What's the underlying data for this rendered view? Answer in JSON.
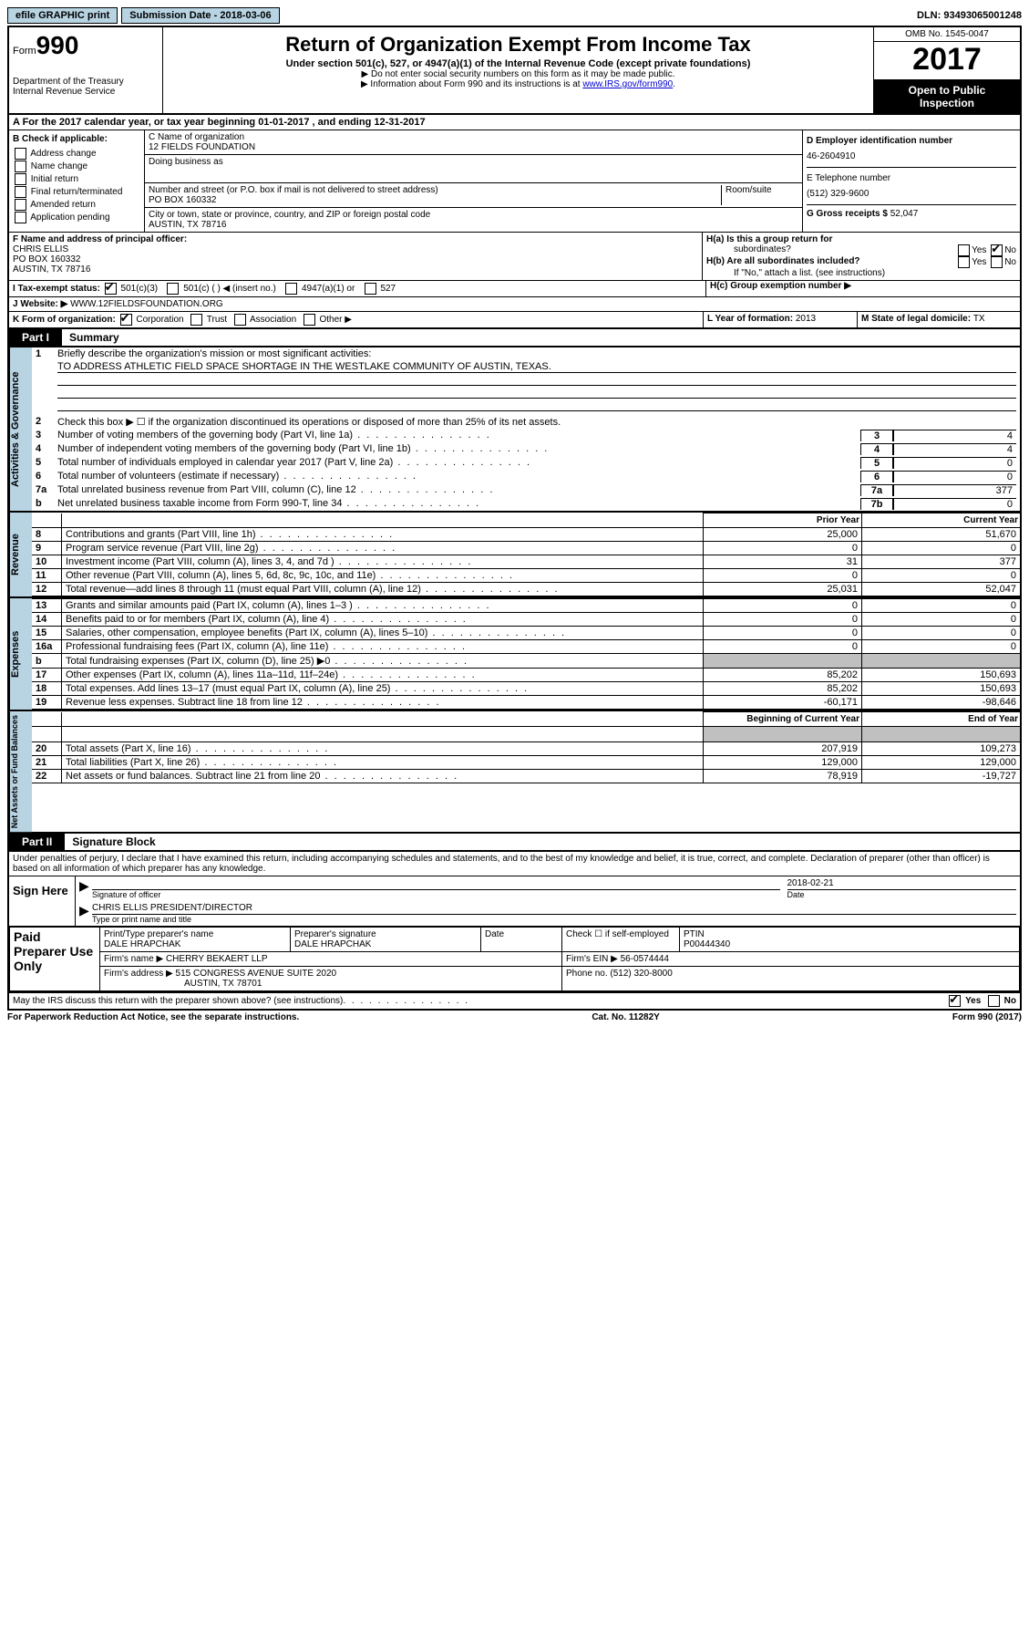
{
  "topbar": {
    "efile": "efile GRAPHIC print",
    "submission_label": "Submission Date - ",
    "submission_date": "2018-03-06",
    "dln": "DLN: 93493065001248"
  },
  "header": {
    "form_prefix": "Form",
    "form_number": "990",
    "dept1": "Department of the Treasury",
    "dept2": "Internal Revenue Service",
    "title": "Return of Organization Exempt From Income Tax",
    "sub": "Under section 501(c), 527, or 4947(a)(1) of the Internal Revenue Code (except private foundations)",
    "note1": "▶ Do not enter social security numbers on this form as it may be made public.",
    "note2": "▶ Information about Form 990 and its instructions is at ",
    "link": "www.IRS.gov/form990",
    "omb": "OMB No. 1545-0047",
    "year": "2017",
    "open1": "Open to Public",
    "open2": "Inspection"
  },
  "sectionA": "A  For the 2017 calendar year, or tax year beginning 01-01-2017   , and ending 12-31-2017",
  "B": {
    "title": "B Check if applicable:",
    "opts": [
      "Address change",
      "Name change",
      "Initial return",
      "Final return/terminated",
      "Amended return",
      "Application pending"
    ]
  },
  "C": {
    "name_label": "C Name of organization",
    "name": "12 FIELDS FOUNDATION",
    "dba_label": "Doing business as",
    "dba": "",
    "street_label": "Number and street (or P.O. box if mail is not delivered to street address)",
    "room_label": "Room/suite",
    "street": "PO BOX 160332",
    "city_label": "City or town, state or province, country, and ZIP or foreign postal code",
    "city": "AUSTIN, TX  78716"
  },
  "D": {
    "label": "D Employer identification number",
    "ein": "46-2604910",
    "tel_label": "E Telephone number",
    "tel": "(512) 329-9600",
    "gross_label": "G Gross receipts $ ",
    "gross": "52,047"
  },
  "F": {
    "label": "F  Name and address of principal officer:",
    "name": "CHRIS ELLIS",
    "addr1": "PO BOX 160332",
    "addr2": "AUSTIN, TX  78716"
  },
  "H": {
    "a": "H(a)  Is this a group return for",
    "a2": "subordinates?",
    "b": "H(b)  Are all subordinates included?",
    "b2": "If \"No,\" attach a list. (see instructions)",
    "c": "H(c)  Group exemption number ▶"
  },
  "I": {
    "label": "I  Tax-exempt status:",
    "o1": "501(c)(3)",
    "o2": "501(c) (  ) ◀ (insert no.)",
    "o3": "4947(a)(1) or",
    "o4": "527"
  },
  "J": {
    "label": "J  Website: ▶",
    "url": "WWW.12FIELDSFOUNDATION.ORG"
  },
  "K": {
    "label": "K Form of organization:",
    "o1": "Corporation",
    "o2": "Trust",
    "o3": "Association",
    "o4": "Other ▶"
  },
  "L": {
    "label": "L Year of formation: ",
    "val": "2013"
  },
  "M": {
    "label": "M State of legal domicile: ",
    "val": "TX"
  },
  "part1": {
    "label": "Part I",
    "title": "Summary",
    "side1": "Activities & Governance",
    "side2": "Revenue",
    "side3": "Expenses",
    "side4": "Net Assets or Fund Balances",
    "l1": "Briefly describe the organization's mission or most significant activities:",
    "mission": "TO ADDRESS ATHLETIC FIELD SPACE SHORTAGE IN THE WESTLAKE COMMUNITY OF AUSTIN, TEXAS.",
    "l2": "Check this box ▶ ☐  if the organization discontinued its operations or disposed of more than 25% of its net assets.",
    "gov": [
      {
        "n": "3",
        "t": "Number of voting members of the governing body (Part VI, line 1a)",
        "b": "3",
        "v": "4"
      },
      {
        "n": "4",
        "t": "Number of independent voting members of the governing body (Part VI, line 1b)",
        "b": "4",
        "v": "4"
      },
      {
        "n": "5",
        "t": "Total number of individuals employed in calendar year 2017 (Part V, line 2a)",
        "b": "5",
        "v": "0"
      },
      {
        "n": "6",
        "t": "Total number of volunteers (estimate if necessary)",
        "b": "6",
        "v": "0"
      },
      {
        "n": "7a",
        "t": "Total unrelated business revenue from Part VIII, column (C), line 12",
        "b": "7a",
        "v": "377"
      },
      {
        "n": "b",
        "t": "Net unrelated business taxable income from Form 990-T, line 34",
        "b": "7b",
        "v": "0"
      }
    ],
    "hdr_prior": "Prior Year",
    "hdr_curr": "Current Year",
    "revenue": [
      {
        "n": "8",
        "t": "Contributions and grants (Part VIII, line 1h)",
        "p": "25,000",
        "c": "51,670"
      },
      {
        "n": "9",
        "t": "Program service revenue (Part VIII, line 2g)",
        "p": "0",
        "c": "0"
      },
      {
        "n": "10",
        "t": "Investment income (Part VIII, column (A), lines 3, 4, and 7d )",
        "p": "31",
        "c": "377"
      },
      {
        "n": "11",
        "t": "Other revenue (Part VIII, column (A), lines 5, 6d, 8c, 9c, 10c, and 11e)",
        "p": "0",
        "c": "0"
      },
      {
        "n": "12",
        "t": "Total revenue—add lines 8 through 11 (must equal Part VIII, column (A), line 12)",
        "p": "25,031",
        "c": "52,047"
      }
    ],
    "expenses": [
      {
        "n": "13",
        "t": "Grants and similar amounts paid (Part IX, column (A), lines 1–3 )",
        "p": "0",
        "c": "0"
      },
      {
        "n": "14",
        "t": "Benefits paid to or for members (Part IX, column (A), line 4)",
        "p": "0",
        "c": "0"
      },
      {
        "n": "15",
        "t": "Salaries, other compensation, employee benefits (Part IX, column (A), lines 5–10)",
        "p": "0",
        "c": "0"
      },
      {
        "n": "16a",
        "t": "Professional fundraising fees (Part IX, column (A), line 11e)",
        "p": "0",
        "c": "0"
      },
      {
        "n": "b",
        "t": "Total fundraising expenses (Part IX, column (D), line 25) ▶0",
        "p": "",
        "c": "",
        "grey": true
      },
      {
        "n": "17",
        "t": "Other expenses (Part IX, column (A), lines 11a–11d, 11f–24e)",
        "p": "85,202",
        "c": "150,693"
      },
      {
        "n": "18",
        "t": "Total expenses. Add lines 13–17 (must equal Part IX, column (A), line 25)",
        "p": "85,202",
        "c": "150,693"
      },
      {
        "n": "19",
        "t": "Revenue less expenses. Subtract line 18 from line 12",
        "p": "-60,171",
        "c": "-98,646"
      }
    ],
    "hdr_beg": "Beginning of Current Year",
    "hdr_end": "End of Year",
    "net": [
      {
        "n": "20",
        "t": "Total assets (Part X, line 16)",
        "p": "207,919",
        "c": "109,273"
      },
      {
        "n": "21",
        "t": "Total liabilities (Part X, line 26)",
        "p": "129,000",
        "c": "129,000"
      },
      {
        "n": "22",
        "t": "Net assets or fund balances. Subtract line 21 from line 20",
        "p": "78,919",
        "c": "-19,727"
      }
    ]
  },
  "part2": {
    "label": "Part II",
    "title": "Signature Block",
    "intro": "Under penalties of perjury, I declare that I have examined this return, including accompanying schedules and statements, and to the best of my knowledge and belief, it is true, correct, and complete. Declaration of preparer (other than officer) is based on all information of which preparer has any knowledge.",
    "sign_here": "Sign Here",
    "sig_date": "2018-02-21",
    "sig_label1": "Signature of officer",
    "sig_label2": "Date",
    "officer_name": "CHRIS ELLIS PRESIDENT/DIRECTOR",
    "name_label": "Type or print name and title",
    "paid": "Paid Preparer Use Only",
    "prep_name_label": "Print/Type preparer's name",
    "prep_name": "DALE HRAPCHAK",
    "prep_sig_label": "Preparer's signature",
    "prep_sig": "DALE HRAPCHAK",
    "date_label": "Date",
    "check_label": "Check ☐ if self-employed",
    "ptin_label": "PTIN",
    "ptin": "P00444340",
    "firm_name_label": "Firm's name    ▶",
    "firm_name": "CHERRY BEKAERT LLP",
    "firm_ein_label": "Firm's EIN ▶",
    "firm_ein": "56-0574444",
    "firm_addr_label": "Firm's address ▶",
    "firm_addr1": "515 CONGRESS AVENUE SUITE 2020",
    "firm_addr2": "AUSTIN, TX  78701",
    "phone_label": "Phone no. ",
    "phone": "(512) 320-8000",
    "discuss": "May the IRS discuss this return with the preparer shown above? (see instructions)"
  },
  "footer": {
    "left": "For Paperwork Reduction Act Notice, see the separate instructions.",
    "center": "Cat. No. 11282Y",
    "right": "Form 990 (2017)"
  }
}
